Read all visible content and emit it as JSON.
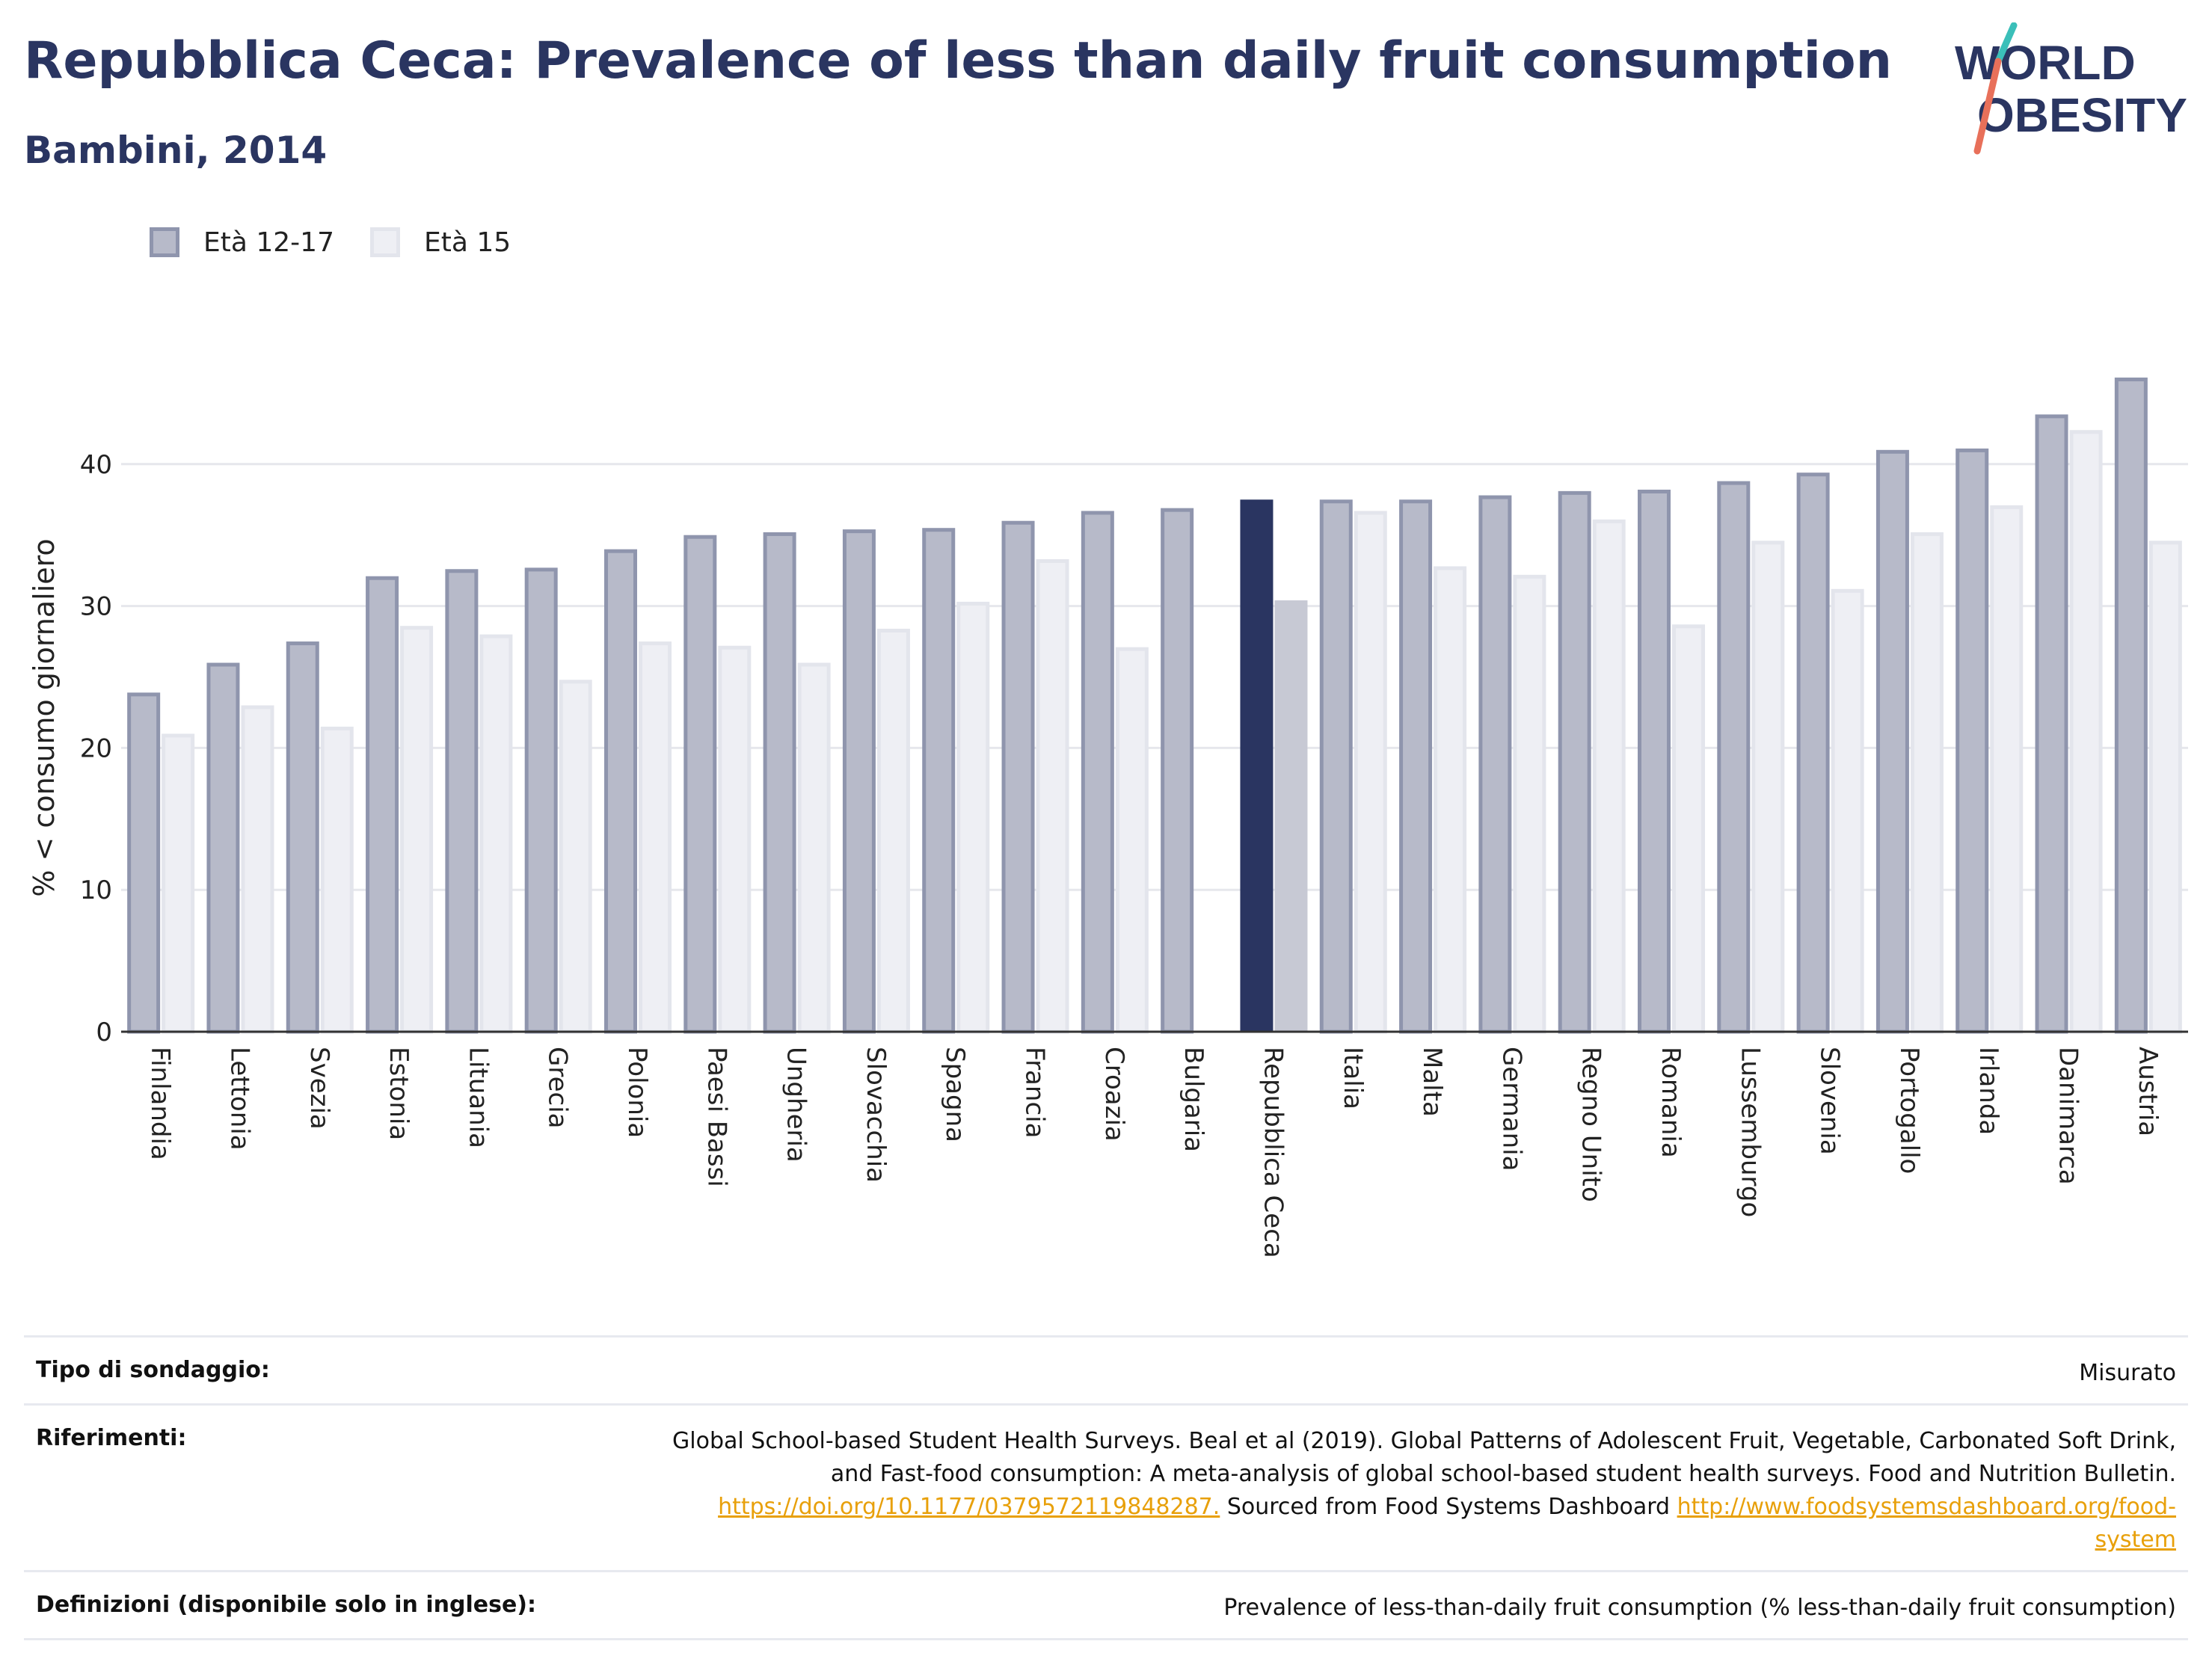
{
  "header": {
    "title": "Repubblica Ceca: Prevalence of less than daily fruit consumption",
    "subtitle": "Bambini, 2014",
    "logo_line1": "WORLD",
    "logo_line2": "OBESITY"
  },
  "colors": {
    "title": "#2a3561",
    "series1_fill": "#b7bac9",
    "series1_stroke": "#8f95ad",
    "series2_fill": "#eeeff4",
    "series2_stroke": "#e3e5ec",
    "highlight1": "#2a3561",
    "highlight2": "#c7c9d4",
    "logo_teal": "#3bbfb9",
    "logo_coral": "#e8705a"
  },
  "chart_data": {
    "type": "bar",
    "title": "Repubblica Ceca: Prevalence of less than daily fruit consumption",
    "subtitle": "Bambini, 2014",
    "xlabel": "",
    "ylabel": "% < consumo giornaliero",
    "ylim": [
      0,
      50
    ],
    "yticks": [
      0,
      10,
      20,
      30,
      40
    ],
    "grid": true,
    "legend_position": "top-left",
    "highlight": "Repubblica Ceca",
    "categories": [
      "Finlandia",
      "Lettonia",
      "Svezia",
      "Estonia",
      "Lituania",
      "Grecia",
      "Polonia",
      "Paesi Bassi",
      "Ungheria",
      "Slovacchia",
      "Spagna",
      "Francia",
      "Croazia",
      "Bulgaria",
      "Repubblica Ceca",
      "Italia",
      "Malta",
      "Germania",
      "Regno Unito",
      "Romania",
      "Lussemburgo",
      "Slovenia",
      "Portogallo",
      "Irlanda",
      "Danimarca",
      "Austria"
    ],
    "series": [
      {
        "name": "Età 12-17",
        "values": [
          23.9,
          26.0,
          27.5,
          32.1,
          32.6,
          32.7,
          34.0,
          35.0,
          35.2,
          35.4,
          35.5,
          36.0,
          36.7,
          36.9,
          37.5,
          37.5,
          37.5,
          37.8,
          38.1,
          38.2,
          38.8,
          39.4,
          41.0,
          41.1,
          43.5,
          46.1
        ]
      },
      {
        "name": "Età 15",
        "values": [
          21.0,
          23.0,
          21.5,
          28.6,
          28.0,
          24.8,
          27.5,
          27.2,
          26.0,
          28.4,
          30.3,
          33.3,
          27.1,
          null,
          30.4,
          36.7,
          32.8,
          32.2,
          36.1,
          28.7,
          34.6,
          31.2,
          35.2,
          37.1,
          42.4,
          34.6
        ]
      }
    ]
  },
  "footer": {
    "survey_label": "Tipo di sondaggio:",
    "survey_value": "Misurato",
    "refs_label": "Riferimenti:",
    "refs_line1": "Global School-based Student Health Surveys. Beal et al (2019). Global Patterns of Adolescent Fruit, Vegetable, Carbonated Soft Drink,",
    "refs_line2": "and Fast-food consumption: A meta-analysis of global school-based student health surveys. Food and Nutrition Bulletin.",
    "refs_link1": "https://doi.org/10.1177/0379572119848287.",
    "refs_mid": " Sourced from Food Systems Dashboard ",
    "refs_link2a": "http://www.foodsystemsdashboard.org/food-",
    "refs_link2b": "system",
    "defs_label": "Definizioni (disponibile solo in inglese):",
    "defs_value": "Prevalence of less-than-daily fruit consumption (% less-than-daily fruit consumption)"
  }
}
